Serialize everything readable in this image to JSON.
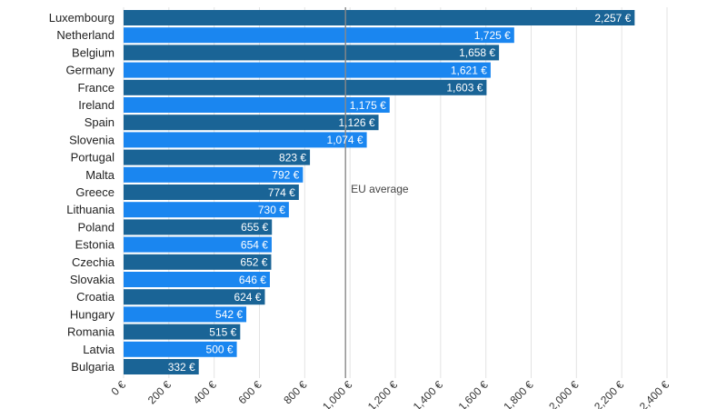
{
  "chart_data": {
    "type": "bar",
    "orientation": "horizontal",
    "title": "",
    "xlabel": "",
    "ylabel": "",
    "xlim": [
      0,
      2400
    ],
    "tick_step": 200,
    "grid": true,
    "categories": [
      "Luxembourg",
      "Netherland",
      "Belgium",
      "Germany",
      "France",
      "Ireland",
      "Spain",
      "Slovenia",
      "Portugal",
      "Malta",
      "Greece",
      "Lithuania",
      "Poland",
      "Estonia",
      "Czechia",
      "Slovakia",
      "Croatia",
      "Hungary",
      "Romania",
      "Latvia",
      "Bulgaria"
    ],
    "values": [
      2257,
      1725,
      1658,
      1621,
      1603,
      1175,
      1126,
      1074,
      823,
      792,
      774,
      730,
      655,
      654,
      652,
      646,
      624,
      542,
      515,
      500,
      332
    ],
    "value_labels": [
      "2,257 €",
      "1,725 €",
      "1,658 €",
      "1,621 €",
      "1,603 €",
      "1,175 €",
      "1,126 €",
      "1,074 €",
      "823 €",
      "792 €",
      "774 €",
      "730 €",
      "655 €",
      "654 €",
      "652 €",
      "646 €",
      "624 €",
      "542 €",
      "515 €",
      "500 €",
      "332 €"
    ],
    "tick_labels": [
      "0 €",
      "200 €",
      "400 €",
      "600 €",
      "800 €",
      "1,000 €",
      "1,200 €",
      "1,400 €",
      "1,600 €",
      "1,800 €",
      "2,000 €",
      "2,200 €",
      "2,400 €"
    ],
    "reference_line": {
      "value": 980,
      "label": "EU average"
    },
    "colors": {
      "bar_dark": "#1a6496",
      "bar_light": "#1a86f0",
      "grid": "#e3e3e3",
      "reference": "#888888"
    }
  }
}
